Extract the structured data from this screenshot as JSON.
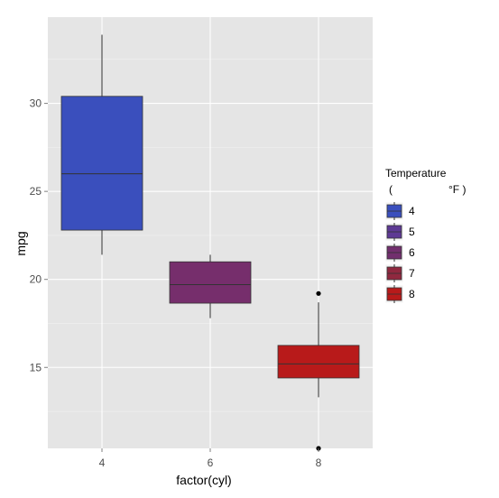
{
  "chart_data": {
    "type": "boxplot",
    "xlabel": "factor(cyl)",
    "ylabel": "mpg",
    "categories": [
      "4",
      "6",
      "8"
    ],
    "ylim": [
      10.4,
      34.9
    ],
    "yticks": [
      15,
      20,
      25,
      30
    ],
    "grid": true,
    "boxes": [
      {
        "category": "4",
        "lower_whisker": 21.4,
        "q1": 22.8,
        "median": 26.0,
        "q3": 30.4,
        "upper_whisker": 33.9,
        "outliers": [],
        "color": "#3A4FBD"
      },
      {
        "category": "6",
        "lower_whisker": 17.8,
        "q1": 18.65,
        "median": 19.7,
        "q3": 21.0,
        "upper_whisker": 21.4,
        "outliers": [],
        "color": "#762E6C"
      },
      {
        "category": "8",
        "lower_whisker": 13.3,
        "q1": 14.4,
        "median": 15.2,
        "q3": 16.25,
        "upper_whisker": 18.7,
        "outliers": [
          10.4,
          19.2
        ],
        "color": "#B81A1A"
      }
    ],
    "legend": {
      "title": "Temperature",
      "subtitle_left": "(",
      "subtitle_right": "°F )",
      "placement": "right",
      "items": [
        {
          "label": "4",
          "color": "#3A4FBD"
        },
        {
          "label": "5",
          "color": "#5E3A94"
        },
        {
          "label": "6",
          "color": "#722F6E"
        },
        {
          "label": "7",
          "color": "#90283F"
        },
        {
          "label": "8",
          "color": "#B81A1A"
        }
      ]
    }
  }
}
